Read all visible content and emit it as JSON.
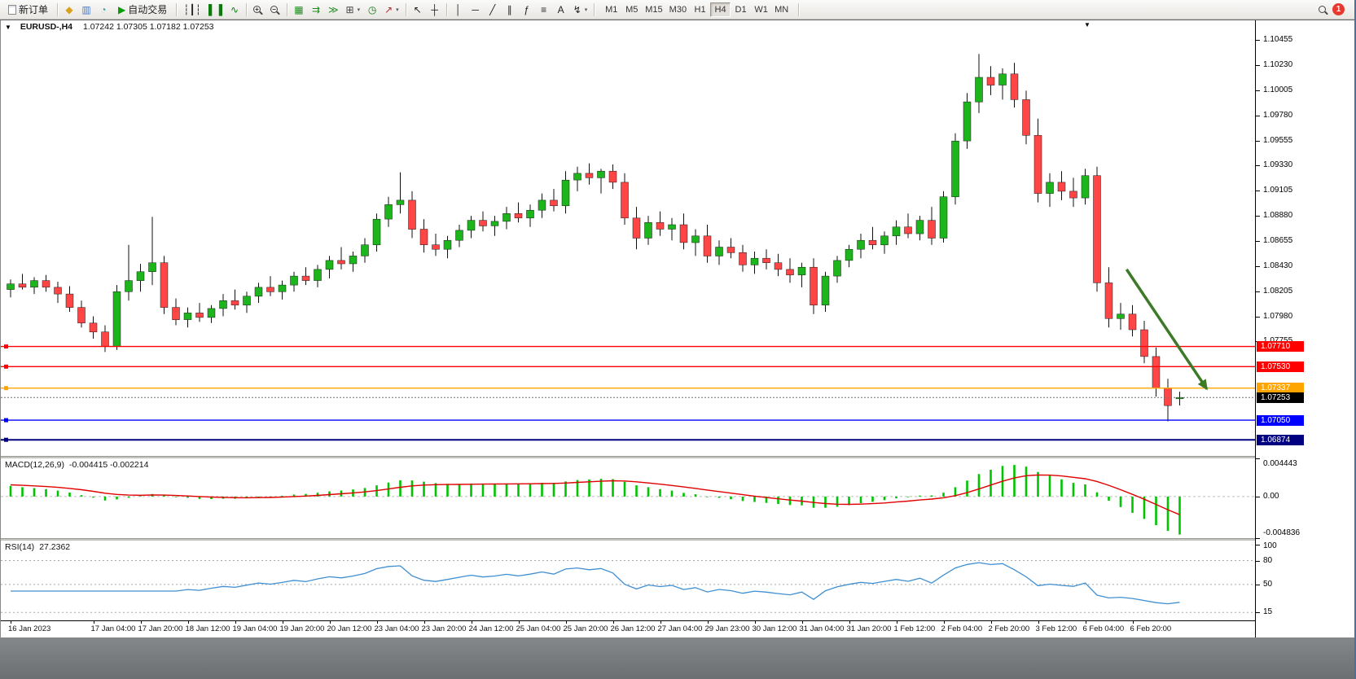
{
  "toolbar": {
    "badge_count": "1",
    "active_timeframe": "H4",
    "timeframes": [
      "M1",
      "M5",
      "M15",
      "M30",
      "H1",
      "H4",
      "D1",
      "W1",
      "MN"
    ],
    "items": [
      {
        "type": "labeled",
        "name": "new-order-button",
        "doc": true,
        "label": "新订单"
      },
      {
        "type": "sep"
      },
      {
        "type": "icon",
        "name": "market-watch-icon",
        "glyph": "◆",
        "color": "#D9A01D"
      },
      {
        "type": "icon",
        "name": "data-window-icon",
        "glyph": "▥",
        "color": "#4A78C8"
      },
      {
        "type": "icon",
        "name": "navigator-icon",
        "glyph": "◔",
        "color": "#2AA8A0"
      },
      {
        "type": "labeled",
        "name": "autotrading-button",
        "glyph": "▶",
        "color": "#0a9a0a",
        "label": "自动交易"
      },
      {
        "type": "sep"
      },
      {
        "type": "icon",
        "name": "ohlc-bars-icon",
        "glyph": "┆┃┆",
        "color": "#222"
      },
      {
        "type": "icon",
        "name": "candlestick-chart-icon",
        "glyph": "▌▐",
        "color": "#0a7a0a"
      },
      {
        "type": "icon",
        "name": "line-chart-icon",
        "glyph": "∿",
        "color": "#0a7a0a"
      },
      {
        "type": "sep"
      },
      {
        "type": "mag",
        "name": "zoom-in-icon",
        "sign": "+"
      },
      {
        "type": "mag",
        "name": "zoom-out-icon",
        "sign": "−"
      },
      {
        "type": "sep"
      },
      {
        "type": "icon",
        "name": "tile-windows-icon",
        "glyph": "▦",
        "color": "#1e8a1e"
      },
      {
        "type": "icon",
        "name": "auto-scroll-icon",
        "glyph": "⇉",
        "color": "#1e8a1e"
      },
      {
        "type": "icon",
        "name": "chart-shift-icon",
        "glyph": "≫",
        "color": "#1e8a1e"
      },
      {
        "type": "icon",
        "name": "new-chart-icon",
        "glyph": "⊞",
        "color": "#444",
        "dropdown": true
      },
      {
        "type": "icon",
        "name": "period-clock-icon",
        "glyph": "◷",
        "color": "#0a7a0a"
      },
      {
        "type": "icon",
        "name": "indicators-icon",
        "glyph": "↗",
        "color": "#b03030",
        "dropdown": true
      },
      {
        "type": "sep"
      },
      {
        "type": "icon",
        "name": "cursor-icon",
        "glyph": "↖",
        "color": "#222"
      },
      {
        "type": "icon",
        "name": "crosshair-icon",
        "glyph": "┼",
        "color": "#222"
      },
      {
        "type": "sep"
      },
      {
        "type": "icon",
        "name": "vertical-line-icon",
        "glyph": "│",
        "color": "#222"
      },
      {
        "type": "icon",
        "name": "horizontal-line-icon",
        "glyph": "─",
        "color": "#222"
      },
      {
        "type": "icon",
        "name": "trendline-icon",
        "glyph": "╱",
        "color": "#222"
      },
      {
        "type": "icon",
        "name": "equidistant-channel-icon",
        "glyph": "∥",
        "color": "#222"
      },
      {
        "type": "icon",
        "name": "fibonacci-icon",
        "glyph": "ƒ",
        "color": "#222"
      },
      {
        "type": "icon",
        "name": "shapes-icon",
        "glyph": "≡",
        "color": "#222"
      },
      {
        "type": "icon",
        "name": "text-label-icon",
        "glyph": "A",
        "color": "#222"
      },
      {
        "type": "icon",
        "name": "arrows-tool-icon",
        "glyph": "↯",
        "color": "#222",
        "dropdown": true
      },
      {
        "type": "sep"
      },
      {
        "type": "timeframes"
      },
      {
        "type": "sep"
      },
      {
        "type": "spacer"
      },
      {
        "type": "mag",
        "name": "search-icon",
        "sign": ""
      },
      {
        "type": "badge",
        "name": "notification-badge"
      }
    ]
  },
  "chart_data": {
    "type": "candlestick",
    "symbol": "EURUSD",
    "period": "H4",
    "title": "EURUSD-,H4",
    "ohlc_text": "1.07242 1.07305 1.07182 1.07253",
    "current": {
      "open": "1.07242",
      "high": "1.07305",
      "low": "1.07182",
      "close": "1.07253"
    },
    "price_range": {
      "max": 1.1063,
      "min": 1.0673
    },
    "up_color": "#1CB51C",
    "down_color": "#FF4545",
    "wick_color": "#111111",
    "y_ticks": [
      "1.10455",
      "1.10230",
      "1.10005",
      "1.09780",
      "1.09555",
      "1.09330",
      "1.09105",
      "1.08880",
      "1.08655",
      "1.08430",
      "1.08205",
      "1.07980",
      "1.07755"
    ],
    "x_labels": [
      "16 Jan 2023",
      "17 Jan 04:00",
      "17 Jan 20:00",
      "18 Jan 12:00",
      "19 Jan 04:00",
      "19 Jan 20:00",
      "20 Jan 12:00",
      "23 Jan 04:00",
      "23 Jan 20:00",
      "24 Jan 12:00",
      "25 Jan 04:00",
      "25 Jan 20:00",
      "26 Jan 12:00",
      "27 Jan 04:00",
      "29 Jan 23:00",
      "30 Jan 12:00",
      "31 Jan 04:00",
      "31 Jan 20:00",
      "1 Feb 12:00",
      "2 Feb 04:00",
      "2 Feb 20:00",
      "3 Feb 12:00",
      "6 Feb 04:00",
      "6 Feb 20:00"
    ],
    "x_label_indices": [
      0,
      7,
      11,
      15,
      19,
      23,
      27,
      31,
      35,
      39,
      43,
      47,
      51,
      55,
      59,
      63,
      67,
      71,
      75,
      79,
      83,
      87,
      91,
      95
    ],
    "hlines": [
      {
        "price": 1.0771,
        "label": "1.07710",
        "color": "#FF0000"
      },
      {
        "price": 1.0753,
        "label": "1.07530",
        "color": "#FF0000"
      },
      {
        "price": 1.07337,
        "label": "1.07337",
        "color": "#FFA500"
      },
      {
        "price": 1.0705,
        "label": "1.07050",
        "color": "#0000FF"
      },
      {
        "price": 1.06874,
        "label": "1.06874",
        "color": "#000080"
      }
    ],
    "bid": {
      "price": 1.07253,
      "label": "1.07253",
      "color": "#000000"
    },
    "arrow": {
      "from_index": 94.5,
      "from_price": 1.084,
      "to_index": 101.3,
      "to_price": 1.0733,
      "color": "#3C7A28",
      "width": 3.5
    },
    "candles": [
      [
        1.0822,
        1.0831,
        1.0815,
        1.0827
      ],
      [
        1.0827,
        1.0836,
        1.0822,
        1.0824
      ],
      [
        1.0824,
        1.0833,
        1.0818,
        1.083
      ],
      [
        1.083,
        1.0835,
        1.082,
        1.0824
      ],
      [
        1.0824,
        1.0829,
        1.081,
        1.0818
      ],
      [
        1.0818,
        1.0825,
        1.0802,
        1.0806
      ],
      [
        1.0806,
        1.0812,
        1.0788,
        1.0792
      ],
      [
        1.0792,
        1.0798,
        1.0778,
        1.0784
      ],
      [
        1.0784,
        1.079,
        1.0766,
        1.0771
      ],
      [
        1.0771,
        1.0826,
        1.0768,
        1.082
      ],
      [
        1.082,
        1.0862,
        1.0812,
        1.083
      ],
      [
        1.083,
        1.0845,
        1.082,
        1.0838
      ],
      [
        1.0838,
        1.0887,
        1.0826,
        1.0846
      ],
      [
        1.0846,
        1.0852,
        1.08,
        1.0806
      ],
      [
        1.0806,
        1.0814,
        1.079,
        1.0795
      ],
      [
        1.0795,
        1.0806,
        1.0788,
        1.0801
      ],
      [
        1.0801,
        1.081,
        1.0793,
        1.0797
      ],
      [
        1.0797,
        1.0808,
        1.0792,
        1.0805
      ],
      [
        1.0805,
        1.0818,
        1.0798,
        1.0812
      ],
      [
        1.0812,
        1.0822,
        1.0804,
        1.0808
      ],
      [
        1.0808,
        1.082,
        1.0801,
        1.0816
      ],
      [
        1.0816,
        1.0828,
        1.081,
        1.0824
      ],
      [
        1.0824,
        1.0834,
        1.0816,
        1.082
      ],
      [
        1.082,
        1.083,
        1.0813,
        1.0826
      ],
      [
        1.0826,
        1.0838,
        1.082,
        1.0834
      ],
      [
        1.0834,
        1.0842,
        1.0826,
        1.083
      ],
      [
        1.083,
        1.0844,
        1.0824,
        1.084
      ],
      [
        1.084,
        1.0852,
        1.0832,
        1.0848
      ],
      [
        1.0848,
        1.086,
        1.084,
        1.0845
      ],
      [
        1.0845,
        1.0856,
        1.0838,
        1.0852
      ],
      [
        1.0852,
        1.0868,
        1.0846,
        1.0862
      ],
      [
        1.0862,
        1.089,
        1.0856,
        1.0885
      ],
      [
        1.0885,
        1.0905,
        1.0878,
        1.0898
      ],
      [
        1.0898,
        1.0927,
        1.089,
        1.0902
      ],
      [
        1.0902,
        1.091,
        1.0868,
        1.0876
      ],
      [
        1.0876,
        1.0885,
        1.0855,
        1.0862
      ],
      [
        1.0862,
        1.0872,
        1.0852,
        1.0858
      ],
      [
        1.0858,
        1.087,
        1.085,
        1.0866
      ],
      [
        1.0866,
        1.088,
        1.086,
        1.0875
      ],
      [
        1.0875,
        1.0888,
        1.0868,
        1.0884
      ],
      [
        1.0884,
        1.0892,
        1.0874,
        1.0879
      ],
      [
        1.0879,
        1.0888,
        1.087,
        1.0883
      ],
      [
        1.0883,
        1.0896,
        1.0876,
        1.089
      ],
      [
        1.089,
        1.09,
        1.0882,
        1.0886
      ],
      [
        1.0886,
        1.0898,
        1.0878,
        1.0893
      ],
      [
        1.0893,
        1.0908,
        1.0886,
        1.0902
      ],
      [
        1.0902,
        1.0912,
        1.0892,
        1.0897
      ],
      [
        1.0897,
        1.0928,
        1.089,
        1.092
      ],
      [
        1.092,
        1.0932,
        1.091,
        1.0926
      ],
      [
        1.0926,
        1.0935,
        1.0916,
        1.0922
      ],
      [
        1.0922,
        1.093,
        1.0908,
        1.0928
      ],
      [
        1.0928,
        1.0934,
        1.0912,
        1.0918
      ],
      [
        1.0918,
        1.0926,
        1.088,
        1.0886
      ],
      [
        1.0886,
        1.0896,
        1.0858,
        1.0868
      ],
      [
        1.0868,
        1.0888,
        1.0862,
        1.0882
      ],
      [
        1.0882,
        1.0892,
        1.087,
        1.0876
      ],
      [
        1.0876,
        1.0886,
        1.0866,
        1.088
      ],
      [
        1.088,
        1.089,
        1.0858,
        1.0864
      ],
      [
        1.0864,
        1.0876,
        1.0852,
        1.087
      ],
      [
        1.087,
        1.088,
        1.0846,
        1.0852
      ],
      [
        1.0852,
        1.0866,
        1.0844,
        1.086
      ],
      [
        1.086,
        1.0868,
        1.085,
        1.0855
      ],
      [
        1.0855,
        1.0862,
        1.0838,
        1.0844
      ],
      [
        1.0844,
        1.0856,
        1.0836,
        1.085
      ],
      [
        1.085,
        1.0858,
        1.084,
        1.0846
      ],
      [
        1.0846,
        1.0854,
        1.0834,
        1.084
      ],
      [
        1.084,
        1.085,
        1.0828,
        1.0835
      ],
      [
        1.0835,
        1.0846,
        1.0824,
        1.0842
      ],
      [
        1.0842,
        1.085,
        1.08,
        1.0808
      ],
      [
        1.0808,
        1.0838,
        1.0802,
        1.0834
      ],
      [
        1.0834,
        1.0852,
        1.0828,
        1.0848
      ],
      [
        1.0848,
        1.0862,
        1.0842,
        1.0858
      ],
      [
        1.0858,
        1.0872,
        1.085,
        1.0866
      ],
      [
        1.0866,
        1.0878,
        1.0858,
        1.0862
      ],
      [
        1.0862,
        1.0874,
        1.0854,
        1.087
      ],
      [
        1.087,
        1.0884,
        1.0862,
        1.0878
      ],
      [
        1.0878,
        1.089,
        1.0868,
        1.0872
      ],
      [
        1.0872,
        1.0888,
        1.0866,
        1.0884
      ],
      [
        1.0884,
        1.0896,
        1.0862,
        1.0868
      ],
      [
        1.0868,
        1.091,
        1.0864,
        1.0905
      ],
      [
        1.0905,
        1.0962,
        1.0898,
        1.0955
      ],
      [
        1.0955,
        1.0998,
        1.0948,
        1.099
      ],
      [
        1.099,
        1.1033,
        1.098,
        1.1012
      ],
      [
        1.1012,
        1.1022,
        1.0996,
        1.1005
      ],
      [
        1.1005,
        1.102,
        1.0992,
        1.1015
      ],
      [
        1.1015,
        1.1025,
        1.0985,
        1.0992
      ],
      [
        1.0992,
        1.1,
        1.0952,
        1.096
      ],
      [
        1.096,
        1.0975,
        1.09,
        1.0908
      ],
      [
        1.0908,
        1.0926,
        1.0896,
        1.0918
      ],
      [
        1.0918,
        1.0928,
        1.0902,
        1.091
      ],
      [
        1.091,
        1.0922,
        1.0896,
        1.0904
      ],
      [
        1.0904,
        1.093,
        1.0898,
        1.0924
      ],
      [
        1.0924,
        1.0932,
        1.082,
        1.0828
      ],
      [
        1.0828,
        1.0842,
        1.0788,
        1.0796
      ],
      [
        1.0796,
        1.081,
        1.0786,
        1.08
      ],
      [
        1.08,
        1.0808,
        1.078,
        1.0786
      ],
      [
        1.0786,
        1.0794,
        1.0756,
        1.0762
      ],
      [
        1.0762,
        1.077,
        1.0726,
        1.0734
      ],
      [
        1.0734,
        1.0742,
        1.0704,
        1.0718
      ],
      [
        1.07242,
        1.07305,
        1.07182,
        1.07253
      ]
    ],
    "macd": {
      "label": "MACD(12,26,9)",
      "values_text": "-0.004415 -0.002214",
      "params": {
        "fast": 12,
        "slow": 26,
        "signal": 9
      },
      "scale": {
        "max": 0.004443,
        "min": -0.004836
      },
      "scale_labels": [
        "0.004443",
        "0.00",
        "-0.004836"
      ],
      "hist_color": "#00C400",
      "signal_color": "#E00000"
    },
    "rsi": {
      "label": "RSI(14)",
      "value_text": "27.2362",
      "period": 14,
      "levels": [
        100,
        80,
        50,
        15
      ],
      "dashed_levels": [
        80,
        50,
        15
      ],
      "line_color": "#3F8FD2"
    }
  }
}
